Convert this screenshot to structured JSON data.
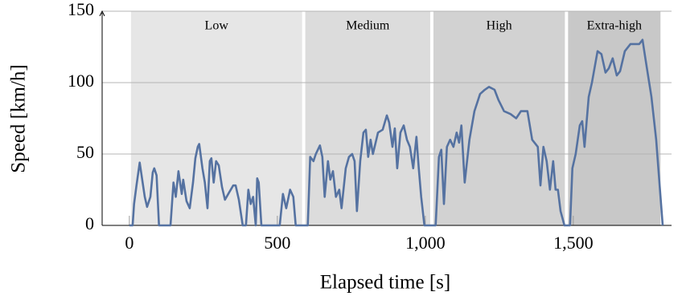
{
  "chart_data": {
    "type": "line",
    "xlabel": "Elapsed time [s]",
    "ylabel": "Speed [km/h]",
    "phases": [
      {
        "label": "Low",
        "start": 0,
        "end": 589,
        "color": "#e6e6e6"
      },
      {
        "label": "Medium",
        "start": 589,
        "end": 1022,
        "color": "#dcdcdc"
      },
      {
        "label": "High",
        "start": 1022,
        "end": 1477,
        "color": "#d2d2d2"
      },
      {
        "label": "Extra-high",
        "start": 1477,
        "end": 1800,
        "color": "#c8c8c8"
      }
    ],
    "series": [
      {
        "name": "Speed",
        "color": "#5572a1",
        "x": [
          0,
          11,
          16,
          24,
          35,
          52,
          60,
          71,
          79,
          84,
          92,
          100,
          139,
          149,
          157,
          166,
          177,
          182,
          193,
          204,
          215,
          223,
          231,
          236,
          247,
          255,
          264,
          272,
          277,
          285,
          293,
          302,
          313,
          323,
          334,
          351,
          359,
          370,
          383,
          394,
          402,
          410,
          418,
          427,
          432,
          437,
          446,
          508,
          519,
          530,
          543,
          554,
          562,
          590,
          603,
          611,
          622,
          630,
          644,
          652,
          660,
          671,
          679,
          688,
          698,
          709,
          717,
          731,
          742,
          753,
          761,
          769,
          780,
          791,
          799,
          807,
          815,
          823,
          840,
          856,
          870,
          878,
          889,
          897,
          905,
          916,
          927,
          938,
          948,
          959,
          970,
          978,
          986,
          997,
          1035,
          1046,
          1054,
          1063,
          1073,
          1084,
          1095,
          1106,
          1114,
          1122,
          1133,
          1149,
          1166,
          1185,
          1201,
          1215,
          1234,
          1247,
          1266,
          1288,
          1307,
          1323,
          1345,
          1361,
          1380,
          1389,
          1399,
          1410,
          1421,
          1432,
          1440,
          1448,
          1457,
          1470,
          1489,
          1497,
          1508,
          1522,
          1530,
          1538,
          1552,
          1563,
          1582,
          1595,
          1609,
          1620,
          1633,
          1647,
          1658,
          1674,
          1693,
          1709,
          1723,
          1734,
          1745,
          1764,
          1780,
          1793,
          1802
        ],
        "values": [
          0,
          0,
          15,
          28,
          44,
          20,
          13,
          20,
          37,
          40,
          35,
          0,
          0,
          30,
          20,
          38,
          22,
          32,
          17,
          12,
          30,
          47,
          55,
          57,
          40,
          30,
          12,
          45,
          47,
          30,
          45,
          42,
          27,
          18,
          22,
          28,
          28,
          18,
          0,
          0,
          25,
          15,
          20,
          0,
          33,
          30,
          0,
          0,
          22,
          12,
          25,
          20,
          0,
          0,
          0,
          48,
          45,
          50,
          56,
          48,
          20,
          45,
          32,
          38,
          20,
          25,
          12,
          40,
          48,
          50,
          45,
          10,
          45,
          65,
          67,
          48,
          60,
          50,
          65,
          67,
          77,
          72,
          55,
          68,
          40,
          65,
          70,
          60,
          55,
          40,
          62,
          40,
          20,
          0,
          0,
          48,
          53,
          15,
          55,
          60,
          55,
          65,
          58,
          70,
          30,
          60,
          80,
          92,
          95,
          97,
          95,
          88,
          80,
          78,
          75,
          80,
          80,
          60,
          55,
          28,
          55,
          45,
          25,
          45,
          25,
          25,
          10,
          0,
          0,
          40,
          50,
          70,
          73,
          55,
          90,
          100,
          122,
          120,
          107,
          110,
          117,
          105,
          108,
          122,
          127,
          127,
          127,
          130,
          115,
          90,
          60,
          25,
          0
        ]
      }
    ],
    "xlim": [
      -92,
      1832
    ],
    "ylim": [
      0,
      150
    ],
    "xticks": [
      0,
      500,
      {
        "value": 1000,
        "label": "1,000"
      },
      {
        "value": 1500,
        "label": "1,500"
      }
    ],
    "yticks": [
      0,
      50,
      100,
      150
    ],
    "grid": true
  }
}
